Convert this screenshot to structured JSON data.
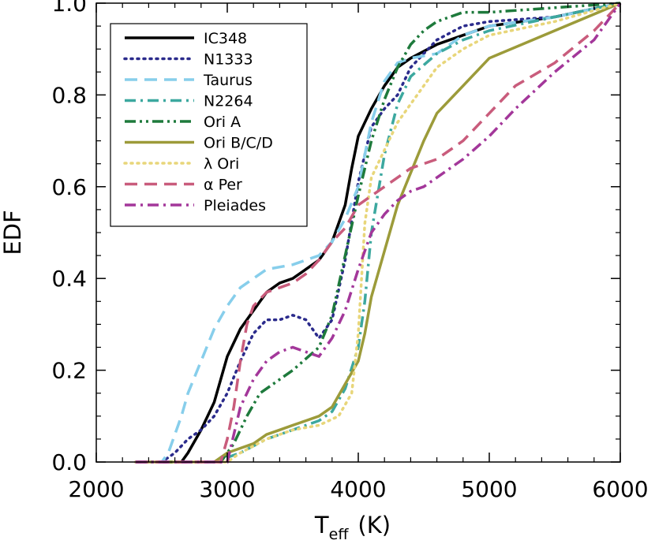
{
  "chart_data": {
    "type": "line",
    "xlabel": "T",
    "xlabel_sub": "eff",
    "xlabel_unit": "(K)",
    "ylabel": "EDF",
    "xlim": [
      2000,
      6000
    ],
    "ylim": [
      0.0,
      1.0
    ],
    "xticks": [
      "2000",
      "3000",
      "4000",
      "5000",
      "6000"
    ],
    "yticks": [
      "0.0",
      "0.2",
      "0.4",
      "0.6",
      "0.8",
      "1.0"
    ],
    "legend_position": "top-left",
    "grid": false,
    "series": [
      {
        "name": "IC348",
        "color": "#000000",
        "dash": "solid",
        "x": [
          2300,
          2650,
          2700,
          2800,
          2900,
          3000,
          3100,
          3200,
          3300,
          3400,
          3500,
          3600,
          3700,
          3800,
          3900,
          3950,
          4000,
          4100,
          4200,
          4300,
          4400,
          4600,
          4800,
          5000,
          5500,
          6000
        ],
        "y": [
          0.0,
          0.0,
          0.02,
          0.07,
          0.13,
          0.23,
          0.29,
          0.33,
          0.37,
          0.39,
          0.4,
          0.42,
          0.44,
          0.48,
          0.56,
          0.64,
          0.71,
          0.77,
          0.82,
          0.86,
          0.88,
          0.91,
          0.93,
          0.95,
          0.97,
          1.0
        ]
      },
      {
        "name": "N1333",
        "color": "#2b2b8c",
        "dash": "dot",
        "x": [
          2300,
          2500,
          2600,
          2700,
          2800,
          2900,
          3000,
          3100,
          3200,
          3300,
          3400,
          3500,
          3600,
          3700,
          3800,
          3900,
          4000,
          4100,
          4200,
          4300,
          4400,
          4600,
          4800,
          5000,
          5500,
          6000
        ],
        "y": [
          0.0,
          0.0,
          0.02,
          0.05,
          0.07,
          0.1,
          0.15,
          0.22,
          0.28,
          0.31,
          0.31,
          0.32,
          0.31,
          0.27,
          0.31,
          0.44,
          0.61,
          0.73,
          0.77,
          0.8,
          0.86,
          0.92,
          0.95,
          0.96,
          0.97,
          1.0
        ]
      },
      {
        "name": "Taurus",
        "color": "#87ceeb",
        "dash": "dashed",
        "x": [
          2300,
          2500,
          2550,
          2650,
          2700,
          2800,
          2900,
          3000,
          3100,
          3200,
          3300,
          3500,
          3700,
          3800,
          3900,
          4000,
          4100,
          4200,
          4300,
          4400,
          4600,
          4800,
          5000,
          5500,
          6000
        ],
        "y": [
          0.0,
          0.0,
          0.02,
          0.1,
          0.15,
          0.22,
          0.29,
          0.34,
          0.38,
          0.4,
          0.42,
          0.43,
          0.45,
          0.48,
          0.53,
          0.6,
          0.74,
          0.83,
          0.87,
          0.88,
          0.89,
          0.93,
          0.95,
          0.97,
          1.0
        ]
      },
      {
        "name": "N2264",
        "color": "#3ca89f",
        "dash": "dashdot",
        "x": [
          2300,
          2900,
          3100,
          3300,
          3500,
          3700,
          3800,
          3900,
          4000,
          4050,
          4100,
          4200,
          4300,
          4400,
          4600,
          4800,
          5000,
          5500,
          6000
        ],
        "y": [
          0.0,
          0.0,
          0.02,
          0.05,
          0.07,
          0.09,
          0.11,
          0.16,
          0.25,
          0.35,
          0.5,
          0.67,
          0.78,
          0.84,
          0.89,
          0.92,
          0.94,
          0.97,
          1.0
        ]
      },
      {
        "name": "Ori A",
        "color": "#1e7a3c",
        "dash": "dashdotdot",
        "x": [
          2300,
          2950,
          3050,
          3150,
          3250,
          3350,
          3500,
          3700,
          3800,
          3900,
          4000,
          4100,
          4200,
          4300,
          4400,
          4500,
          4600,
          4800,
          5000,
          5500,
          6000
        ],
        "y": [
          0.0,
          0.0,
          0.04,
          0.1,
          0.15,
          0.17,
          0.2,
          0.25,
          0.32,
          0.45,
          0.58,
          0.7,
          0.79,
          0.86,
          0.91,
          0.94,
          0.96,
          0.98,
          0.98,
          0.99,
          1.0
        ]
      },
      {
        "name": "Ori B/C/D",
        "color": "#9c9b3a",
        "dash": "solid",
        "x": [
          2300,
          2900,
          3000,
          3100,
          3200,
          3300,
          3400,
          3500,
          3600,
          3700,
          3800,
          3900,
          4000,
          4050,
          4100,
          4200,
          4300,
          4400,
          4500,
          4600,
          4800,
          5000,
          5500,
          6000
        ],
        "y": [
          0.0,
          0.0,
          0.02,
          0.03,
          0.04,
          0.06,
          0.07,
          0.08,
          0.09,
          0.1,
          0.12,
          0.17,
          0.22,
          0.28,
          0.36,
          0.46,
          0.56,
          0.63,
          0.7,
          0.76,
          0.82,
          0.88,
          0.94,
          1.0
        ]
      },
      {
        "name": "λ Ori",
        "color": "#e8d67a",
        "dash": "dot",
        "x": [
          2300,
          3000,
          3100,
          3300,
          3500,
          3700,
          3850,
          3950,
          4000,
          4050,
          4100,
          4200,
          4300,
          4400,
          4500,
          4600,
          4800,
          5000,
          5500,
          6000
        ],
        "y": [
          0.0,
          0.0,
          0.02,
          0.05,
          0.07,
          0.08,
          0.1,
          0.15,
          0.28,
          0.52,
          0.62,
          0.68,
          0.74,
          0.78,
          0.82,
          0.86,
          0.9,
          0.93,
          0.96,
          1.0
        ]
      },
      {
        "name": "α Per",
        "color": "#c95c7c",
        "dash": "dashed",
        "x": [
          2300,
          2950,
          3000,
          3050,
          3100,
          3150,
          3200,
          3300,
          3400,
          3500,
          3600,
          3700,
          3800,
          3900,
          4000,
          4100,
          4200,
          4300,
          4400,
          4600,
          4800,
          5000,
          5200,
          5500,
          5800,
          6000
        ],
        "y": [
          0.0,
          0.0,
          0.05,
          0.12,
          0.22,
          0.3,
          0.34,
          0.37,
          0.38,
          0.39,
          0.41,
          0.44,
          0.48,
          0.51,
          0.56,
          0.58,
          0.6,
          0.62,
          0.64,
          0.66,
          0.7,
          0.76,
          0.82,
          0.87,
          0.94,
          1.0
        ]
      },
      {
        "name": "Pleiades",
        "color": "#a3379a",
        "dash": "dashdot",
        "x": [
          2300,
          3000,
          3100,
          3200,
          3300,
          3400,
          3500,
          3600,
          3700,
          3800,
          3900,
          4000,
          4100,
          4200,
          4300,
          4400,
          4500,
          4600,
          4800,
          5000,
          5200,
          5500,
          5800,
          6000
        ],
        "y": [
          0.0,
          0.0,
          0.12,
          0.18,
          0.22,
          0.24,
          0.25,
          0.24,
          0.23,
          0.27,
          0.33,
          0.42,
          0.5,
          0.54,
          0.57,
          0.59,
          0.6,
          0.62,
          0.66,
          0.71,
          0.77,
          0.85,
          0.92,
          1.0
        ]
      }
    ]
  }
}
